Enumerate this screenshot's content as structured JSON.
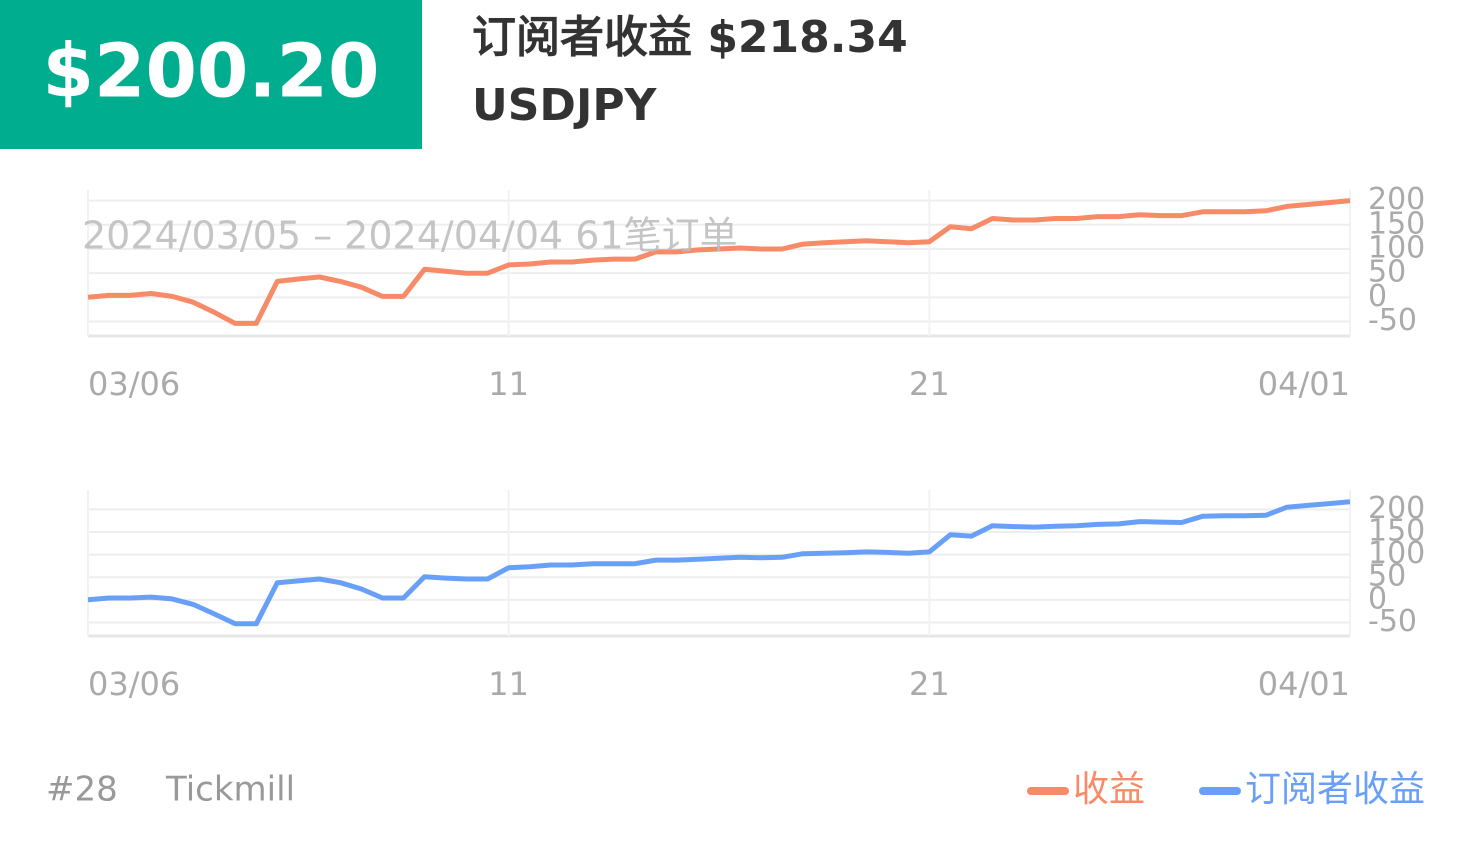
{
  "header": {
    "amount": "$200.20",
    "title": "订阅者收益 $218.34",
    "symbol": "USDJPY",
    "period": "2024/03/05 – 2024/04/04  61笔订单"
  },
  "footer": {
    "rank": "#28",
    "broker": "Tickmill"
  },
  "chart_data": [
    {
      "type": "line",
      "categories": [
        "03/06",
        null,
        null,
        null,
        null,
        null,
        null,
        null,
        null,
        null,
        null,
        null,
        null,
        null,
        null,
        null,
        null,
        null,
        null,
        null,
        "11",
        null,
        null,
        null,
        null,
        null,
        null,
        null,
        null,
        null,
        null,
        null,
        null,
        null,
        null,
        null,
        null,
        null,
        null,
        null,
        "21",
        null,
        null,
        null,
        null,
        null,
        null,
        null,
        null,
        null,
        null,
        null,
        null,
        null,
        null,
        null,
        null,
        null,
        null,
        null,
        "04/01"
      ],
      "series": [
        {
          "name": "收益",
          "color": "#f78b68",
          "values": [
            0,
            4,
            4,
            8,
            2,
            -10,
            -31,
            -54,
            -54,
            33,
            38,
            42,
            33,
            21,
            2,
            2,
            58,
            54,
            50,
            50,
            67,
            69,
            73,
            73,
            77,
            79,
            79,
            94,
            94,
            98,
            100,
            102,
            100,
            100,
            110,
            113,
            115,
            117,
            115,
            113,
            115,
            146,
            142,
            163,
            160,
            160,
            163,
            163,
            167,
            167,
            171,
            169,
            169,
            177,
            177,
            177,
            179,
            188,
            192,
            196,
            200
          ]
        }
      ],
      "ylim": [
        -80,
        222
      ],
      "yticks": [
        -50,
        0,
        50,
        100,
        150,
        200
      ],
      "grid": true
    },
    {
      "type": "line",
      "categories": [
        "03/06",
        null,
        null,
        null,
        null,
        null,
        null,
        null,
        null,
        null,
        null,
        null,
        null,
        null,
        null,
        null,
        null,
        null,
        null,
        null,
        "11",
        null,
        null,
        null,
        null,
        null,
        null,
        null,
        null,
        null,
        null,
        null,
        null,
        null,
        null,
        null,
        null,
        null,
        null,
        null,
        "21",
        null,
        null,
        null,
        null,
        null,
        null,
        null,
        null,
        null,
        null,
        null,
        null,
        null,
        null,
        null,
        null,
        null,
        null,
        null,
        "04/01"
      ],
      "series": [
        {
          "name": "订阅者收益",
          "color": "#69a0f7",
          "values": [
            0,
            4,
            4,
            6,
            2,
            -10,
            -31,
            -53,
            -53,
            38,
            42,
            46,
            38,
            24,
            4,
            4,
            51,
            48,
            46,
            46,
            71,
            73,
            77,
            77,
            80,
            80,
            80,
            88,
            88,
            90,
            92,
            94,
            93,
            94,
            102,
            103,
            104,
            106,
            105,
            103,
            106,
            144,
            141,
            164,
            162,
            161,
            163,
            164,
            167,
            168,
            173,
            172,
            171,
            185,
            186,
            186,
            187,
            205,
            209,
            213,
            217
          ]
        }
      ],
      "ylim": [
        -80,
        243
      ],
      "yticks": [
        -50,
        0,
        50,
        100,
        150,
        200
      ],
      "grid": true
    }
  ]
}
